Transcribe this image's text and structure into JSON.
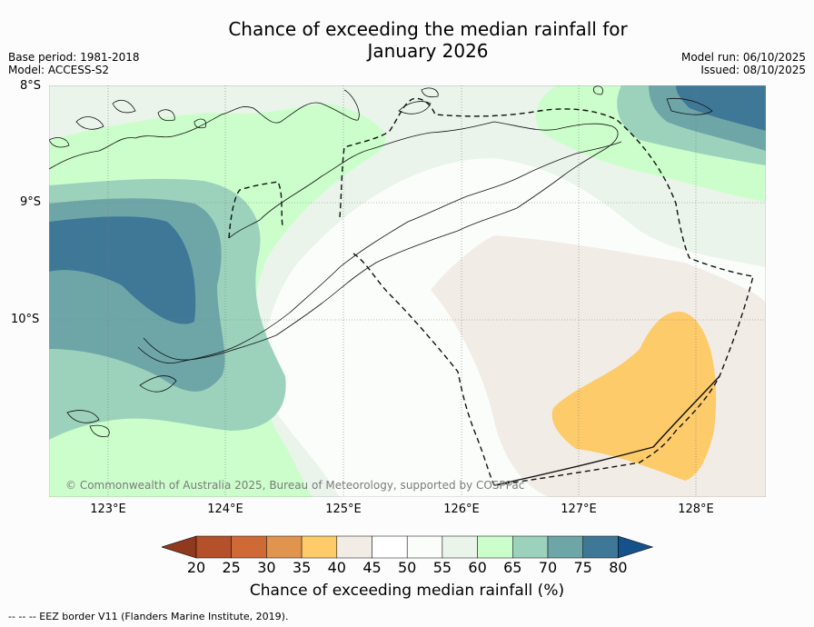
{
  "title_line1": "Chance of exceeding the median rainfall for",
  "title_line2": "January 2026",
  "base_period": "Base period: 1981-2018",
  "model": "Model: ACCESS-S2",
  "model_run": "Model run: 06/10/2025",
  "issued": "Issued: 08/10/2025",
  "lat_labels": [
    "8°S",
    "9°S",
    "10°S"
  ],
  "lon_labels": [
    "123°E",
    "124°E",
    "125°E",
    "126°E",
    "127°E",
    "128°E"
  ],
  "credit": "© Commonwealth of Australia 2025, Bureau of Meteorology, supported by COSPPac",
  "colorbar": {
    "ticks": [
      "20",
      "25",
      "30",
      "35",
      "40",
      "45",
      "50",
      "55",
      "60",
      "65",
      "70",
      "75",
      "80"
    ],
    "colors": [
      "#b4502a",
      "#cf6a37",
      "#e0944e",
      "#fecb6a",
      "#f2ece6",
      "#ffffff",
      "#fbfdfb",
      "#eaf4ea",
      "#ccfecc",
      "#9cd2bc",
      "#6ea6a8",
      "#3f7897"
    ],
    "under_color": "#8f3a1e",
    "over_color": "#16528a",
    "title": "Chance of exceeding median rainfall (%)"
  },
  "footnote": "--  --  -- EEZ border V11 (Flanders Marine Institute, 2019)."
}
